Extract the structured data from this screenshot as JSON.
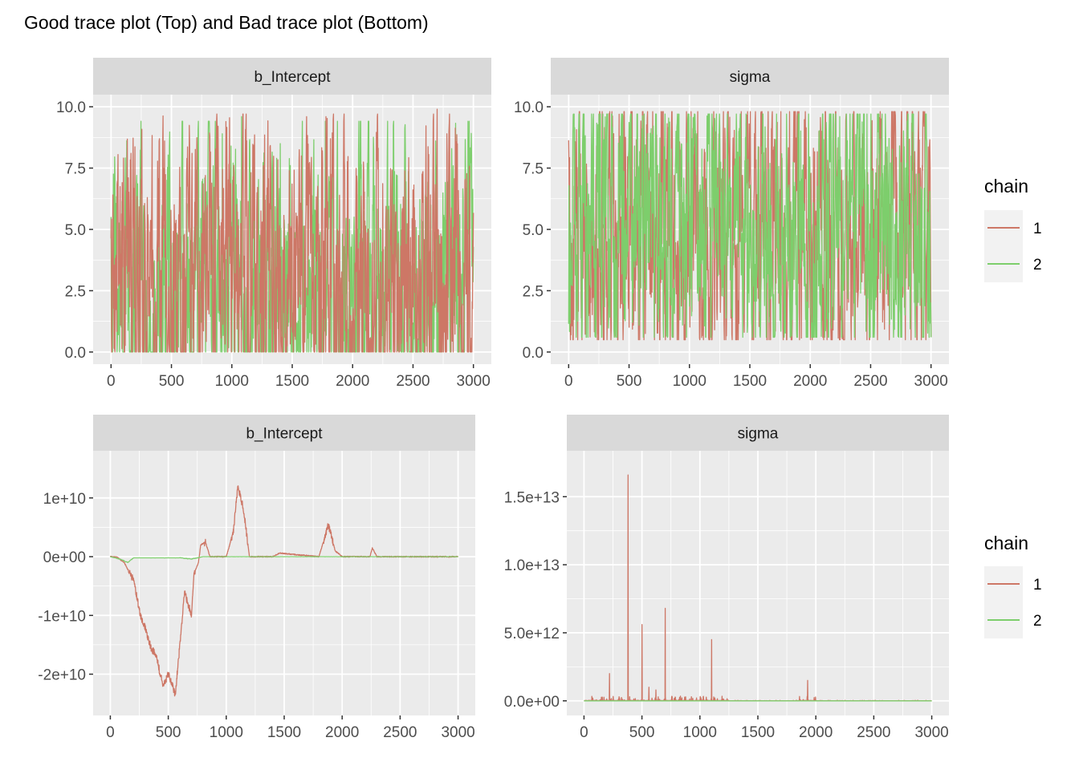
{
  "title": "Good trace plot (Top) and Bad trace plot (Bottom)",
  "legend": {
    "title": "chain",
    "entries": [
      {
        "label": "1",
        "color": "#CD7766"
      },
      {
        "label": "2",
        "color": "#7DCE6C"
      }
    ]
  },
  "colors": {
    "panel_bg": "#EBEBEB",
    "strip_bg": "#D9D9D9",
    "grid": "#FFFFFF",
    "tick_text": "#4D4D4D",
    "strip_text": "#1A1A1A"
  },
  "chart_data": [
    {
      "type": "line",
      "panel": "top-left",
      "strip_label": "b_Intercept",
      "xlim": [
        0,
        3000
      ],
      "ylim": [
        0,
        10
      ],
      "x_ticks": [
        0,
        500,
        1000,
        1500,
        2000,
        2500,
        3000
      ],
      "x_tick_labels": [
        "0",
        "500",
        "1000",
        "1500",
        "2000",
        "2500",
        "3000"
      ],
      "y_ticks": [
        0,
        2.5,
        5,
        7.5,
        10
      ],
      "y_tick_labels": [
        "0.0",
        "2.5",
        "5.0",
        "7.5",
        "10.0"
      ],
      "series": [
        {
          "name": "1",
          "behavior": "good",
          "low": 0,
          "high": 9.9,
          "mean": 2.0,
          "peaks": [
            [
              300,
              6.3
            ],
            [
              950,
              9.4
            ],
            [
              1620,
              9.6
            ],
            [
              1780,
              9.6
            ],
            [
              2700,
              9.9
            ],
            [
              2780,
              8.9
            ]
          ]
        },
        {
          "name": "2",
          "behavior": "good",
          "low": 0,
          "high": 9.6,
          "mean": 2.3,
          "peaks": [
            [
              920,
              8.9
            ],
            [
              1080,
              9.6
            ],
            [
              1400,
              8.5
            ]
          ]
        }
      ]
    },
    {
      "type": "line",
      "panel": "top-right",
      "strip_label": "sigma",
      "xlim": [
        0,
        3000
      ],
      "ylim": [
        0,
        10
      ],
      "x_ticks": [
        0,
        500,
        1000,
        1500,
        2000,
        2500,
        3000
      ],
      "x_tick_labels": [
        "0",
        "500",
        "1000",
        "1500",
        "2000",
        "2500",
        "3000"
      ],
      "y_ticks": [
        0,
        2.5,
        5,
        7.5,
        10
      ],
      "y_tick_labels": [
        "0.0",
        "2.5",
        "5.0",
        "7.5",
        "10.0"
      ],
      "series": [
        {
          "name": "1",
          "behavior": "good",
          "low": 0.5,
          "high": 10,
          "mean": 5.0,
          "peaks": []
        },
        {
          "name": "2",
          "behavior": "good",
          "low": 0.6,
          "high": 9.9,
          "mean": 5.3,
          "peaks": []
        }
      ]
    },
    {
      "type": "line",
      "panel": "bottom-left",
      "strip_label": "b_Intercept",
      "xlim": [
        0,
        3000
      ],
      "ylim": [
        -25000000000.0,
        16000000000.0
      ],
      "x_ticks": [
        0,
        500,
        1000,
        1500,
        2000,
        2500,
        3000
      ],
      "x_tick_labels": [
        "0",
        "500",
        "1000",
        "1500",
        "2000",
        "2500",
        "3000"
      ],
      "y_ticks": [
        -20000000000.0,
        -10000000000.0,
        0,
        10000000000.0
      ],
      "y_tick_labels": [
        "-2e+10",
        "-1e+10",
        "0e+00",
        "1e+10"
      ],
      "series": [
        {
          "name": "1",
          "behavior": "bad",
          "points": [
            [
              0,
              0
            ],
            [
              60,
              -100000000.0
            ],
            [
              120,
              -1000000000.0
            ],
            [
              200,
              -4000000000.0
            ],
            [
              260,
              -10000000000.0
            ],
            [
              300,
              -12000000000.0
            ],
            [
              350,
              -15500000000.0
            ],
            [
              400,
              -17000000000.0
            ],
            [
              430,
              -20000000000.0
            ],
            [
              460,
              -22000000000.0
            ],
            [
              500,
              -20000000000.0
            ],
            [
              530,
              -21500000000.0
            ],
            [
              560,
              -23500000000.0
            ],
            [
              600,
              -15000000000.0
            ],
            [
              640,
              -6000000000.0
            ],
            [
              700,
              -10000000000.0
            ],
            [
              720,
              -3000000000.0
            ],
            [
              760,
              -1000000000.0
            ],
            [
              780,
              2000000000.0
            ],
            [
              820,
              2500000000.0
            ],
            [
              860,
              0
            ],
            [
              1000,
              0
            ],
            [
              1060,
              4000000000.0
            ],
            [
              1100,
              12000000000.0
            ],
            [
              1150,
              8000000000.0
            ],
            [
              1200,
              0
            ],
            [
              1400,
              0
            ],
            [
              1460,
              600000000.0
            ],
            [
              1800,
              0
            ],
            [
              1860,
              4000000000.0
            ],
            [
              1880,
              5500000000.0
            ],
            [
              1940,
              1000000000.0
            ],
            [
              2000,
              0
            ],
            [
              2240,
              0
            ],
            [
              2260,
              1500000000.0
            ],
            [
              2300,
              0
            ],
            [
              3000,
              0
            ]
          ]
        },
        {
          "name": "2",
          "behavior": "flat",
          "points": [
            [
              0,
              0
            ],
            [
              100,
              -500000000.0
            ],
            [
              150,
              -1000000000.0
            ],
            [
              200,
              -200000000.0
            ],
            [
              600,
              -200000000.0
            ],
            [
              700,
              -400000000.0
            ],
            [
              800,
              0
            ],
            [
              3000,
              0
            ]
          ]
        }
      ]
    },
    {
      "type": "line",
      "panel": "bottom-right",
      "strip_label": "sigma",
      "xlim": [
        0,
        3000
      ],
      "ylim": [
        -200000000000.0,
        17500000000000.0
      ],
      "x_ticks": [
        0,
        500,
        1000,
        1500,
        2000,
        2500,
        3000
      ],
      "x_tick_labels": [
        "0",
        "500",
        "1000",
        "1500",
        "2000",
        "2500",
        "3000"
      ],
      "y_ticks": [
        0,
        5000000000000.0,
        10000000000000.0,
        15000000000000.0
      ],
      "y_tick_labels": [
        "0.0e+00",
        "5.0e+12",
        "1.0e+13",
        "1.5e+13"
      ],
      "series": [
        {
          "name": "1",
          "behavior": "spiky",
          "spikes": [
            [
              220,
              2000000000000.0
            ],
            [
              380,
              16600000000000.0
            ],
            [
              500,
              5600000000000.0
            ],
            [
              560,
              1000000000000.0
            ],
            [
              620,
              800000000000.0
            ],
            [
              700,
              6800000000000.0
            ],
            [
              760,
              300000000000.0
            ],
            [
              1100,
              4500000000000.0
            ],
            [
              1930,
              1500000000000.0
            ]
          ]
        },
        {
          "name": "2",
          "behavior": "flat",
          "spikes": []
        }
      ]
    }
  ]
}
